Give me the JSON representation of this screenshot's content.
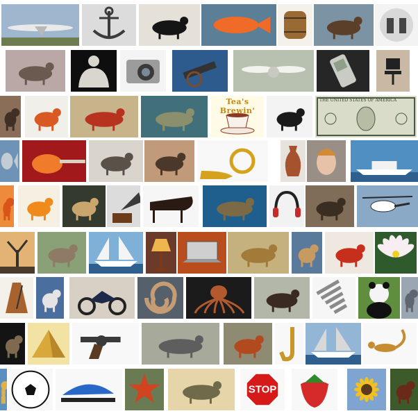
{
  "mosaic": {
    "background": "#ffffff",
    "rows": [
      {
        "tiles": [
          {
            "name": "airplane",
            "icon": "airplane-icon",
            "bg": "#9fb6cf",
            "fg": "#e9e9e9"
          },
          {
            "name": "anchor",
            "icon": "anchor-icon",
            "bg": "#dcdcdc",
            "fg": "#3b3b3b"
          },
          {
            "name": "ant",
            "icon": "ant-icon",
            "bg": "#e5e0d8",
            "fg": "#151515"
          },
          {
            "name": "goldfish",
            "icon": "fish-icon",
            "bg": "#5a7f96",
            "fg": "#f06a28"
          },
          {
            "name": "barrel",
            "icon": "barrel-icon",
            "bg": "#f4f1ea",
            "fg": "#9a6a35"
          },
          {
            "name": "beaver",
            "icon": "beaver-icon",
            "bg": "#7b93a3",
            "fg": "#5b3f28"
          },
          {
            "name": "binoculars",
            "icon": "binoculars-icon",
            "bg": "#f3f3f3",
            "fg": "#444444"
          }
        ]
      },
      {
        "tiles": [
          {
            "name": "brontosaurus",
            "icon": "dinosaur-icon",
            "bg": "#b9a8a6",
            "fg": "#6a5a50"
          },
          {
            "name": "buddha",
            "icon": "buddha-icon",
            "bg": "#0e0e0e",
            "fg": "#d8d6cf"
          },
          {
            "name": "camera",
            "icon": "camera-icon",
            "bg": "#f4f4f4",
            "fg": "#9c9c9c"
          },
          {
            "name": "cannon",
            "icon": "cannon-icon",
            "bg": "#2e5b8d",
            "fg": "#7a4b2c"
          },
          {
            "name": "ceiling-fan",
            "icon": "fan-icon",
            "bg": "#b8c0b0",
            "fg": "#f2f2ee"
          },
          {
            "name": "cellphone",
            "icon": "phone-icon",
            "bg": "#262626",
            "fg": "#c9ccc4"
          },
          {
            "name": "chair",
            "icon": "chair-icon",
            "bg": "#c9b8a4",
            "fg": "#222222"
          }
        ]
      },
      {
        "tiles": [
          {
            "name": "chimp",
            "icon": "chimp-icon",
            "bg": "#8a6e58",
            "fg": "#3f2f24"
          },
          {
            "name": "crab",
            "icon": "crab-icon",
            "bg": "#f1efe9",
            "fg": "#d85a22"
          },
          {
            "name": "crayfish",
            "icon": "crayfish-icon",
            "bg": "#c8b48a",
            "fg": "#b8331f"
          },
          {
            "name": "crocodile",
            "icon": "crocodile-icon",
            "bg": "#416f7a",
            "fg": "#8b8f6b"
          },
          {
            "name": "cup",
            "icon": "cup-icon",
            "bg": "#fffbe6",
            "fg": "#8a3a22",
            "caption": "Tea's Brewin'"
          },
          {
            "name": "dalmatian",
            "icon": "dog-icon",
            "bg": "#f3f3f3",
            "fg": "#1a1a1a"
          },
          {
            "name": "dollar-bill",
            "icon": "bill-icon",
            "bg": "#d8dcc9",
            "fg": "#4b5a44",
            "caption": "THE UNITED STATES OF AMERICA"
          }
        ]
      },
      {
        "tiles": [
          {
            "name": "dolphin",
            "icon": "dolphin-icon",
            "bg": "#6e93b7",
            "fg": "#c3ccd3"
          },
          {
            "name": "electric-guitar",
            "icon": "guitar-icon",
            "bg": "#a2191b",
            "fg": "#f07b2a"
          },
          {
            "name": "elephant",
            "icon": "elephant-icon",
            "bg": "#d9d4cc",
            "fg": "#5a5249"
          },
          {
            "name": "emu",
            "icon": "emu-icon",
            "bg": "#c09a79",
            "fg": "#4b382b"
          },
          {
            "name": "euphonium",
            "icon": "horn-icon",
            "bg": "#f8f8f8",
            "fg": "#d6a11d"
          },
          {
            "name": "ewer",
            "icon": "vase-icon",
            "bg": "#e7e2dc",
            "fg": "#a5532f"
          },
          {
            "name": "face",
            "icon": "face-icon",
            "bg": "#9a8f86",
            "fg": "#e7c2a8"
          },
          {
            "name": "ferry",
            "icon": "ship-icon",
            "bg": "#4f8fc1",
            "fg": "#f2f2f2"
          }
        ]
      },
      {
        "tiles": [
          {
            "name": "flamingo",
            "icon": "flamingo-icon",
            "bg": "#ee8b3b",
            "fg": "#d9531a"
          },
          {
            "name": "garfield",
            "icon": "garfield-icon",
            "bg": "#f6f0e2",
            "fg": "#f08a1b"
          },
          {
            "name": "gerenuk",
            "icon": "gerenuk-icon",
            "bg": "#343a2e",
            "fg": "#c8a66d"
          },
          {
            "name": "gramophone",
            "icon": "gramophone-icon",
            "bg": "#dcdcdc",
            "fg": "#3a3a3a"
          },
          {
            "name": "grand-piano",
            "icon": "piano-icon",
            "bg": "#f6f6f6",
            "fg": "#2a1a14"
          },
          {
            "name": "hawksbill",
            "icon": "turtle-icon",
            "bg": "#1f5f8e",
            "fg": "#7b6a45"
          },
          {
            "name": "headphone",
            "icon": "headphone-icon",
            "bg": "#f2f2f2",
            "fg": "#222222"
          },
          {
            "name": "hedgehog",
            "icon": "hedgehog-icon",
            "bg": "#7f6d58",
            "fg": "#3a2d22"
          },
          {
            "name": "helicopter",
            "icon": "helicopter-icon",
            "bg": "#89a9c6",
            "fg": "#2b2b2b"
          }
        ]
      },
      {
        "tiles": [
          {
            "name": "joshua-tree",
            "icon": "tree-icon",
            "bg": "#e3b275",
            "fg": "#34302a"
          },
          {
            "name": "kangaroo",
            "icon": "kangaroo-icon",
            "bg": "#8aa077",
            "fg": "#8d7b66"
          },
          {
            "name": "ketch",
            "icon": "sailboat-icon",
            "bg": "#7fb0d8",
            "fg": "#f4f4f4"
          },
          {
            "name": "lamp",
            "icon": "lamp-icon",
            "bg": "#6a3b2a",
            "fg": "#f0b64e"
          },
          {
            "name": "laptop",
            "icon": "laptop-icon",
            "bg": "#b94d1e",
            "fg": "#cfcfcf"
          },
          {
            "name": "leopards",
            "icon": "leopard-icon",
            "bg": "#c4b17d",
            "fg": "#a27a3a"
          },
          {
            "name": "llama",
            "icon": "llama-icon",
            "bg": "#5a7a9b",
            "fg": "#c79a62"
          },
          {
            "name": "lobster",
            "icon": "lobster-icon",
            "bg": "#efe8e0",
            "fg": "#c62f1c"
          },
          {
            "name": "lotus",
            "icon": "lotus-icon",
            "bg": "#2f5a2b",
            "fg": "#f6eef0"
          }
        ]
      },
      {
        "tiles": [
          {
            "name": "metronome",
            "icon": "metronome-icon",
            "bg": "#f4f0ea",
            "fg": "#a8622e"
          },
          {
            "name": "minaret",
            "icon": "minaret-icon",
            "bg": "#4a6e9e",
            "fg": "#e4e4e4"
          },
          {
            "name": "motorbike",
            "icon": "motorbike-icon",
            "bg": "#d8d0c4",
            "fg": "#1e2a4a"
          },
          {
            "name": "nautilus",
            "icon": "nautilus-icon",
            "bg": "#55606b",
            "fg": "#c69c74"
          },
          {
            "name": "octopus",
            "icon": "octopus-icon",
            "bg": "#1b1b1b",
            "fg": "#b25a2e"
          },
          {
            "name": "okapi",
            "icon": "okapi-icon",
            "bg": "#b3b7aa",
            "fg": "#3a2a22"
          },
          {
            "name": "pagoda",
            "icon": "pagoda-icon",
            "bg": "#f6f6f6",
            "fg": "#8a8a8a"
          },
          {
            "name": "panda",
            "icon": "panda-icon",
            "bg": "#5f8f3e",
            "fg": "#111111"
          },
          {
            "name": "pigeon",
            "icon": "pigeon-icon",
            "bg": "#9aa6b2",
            "fg": "#5f6670"
          }
        ]
      },
      {
        "tiles": [
          {
            "name": "platypus",
            "icon": "platypus-icon",
            "bg": "#141414",
            "fg": "#7f6a50"
          },
          {
            "name": "pyramid",
            "icon": "pyramid-icon",
            "bg": "#f2e3a4",
            "fg": "#d8a93a"
          },
          {
            "name": "revolver",
            "icon": "revolver-icon",
            "bg": "#f8f8f8",
            "fg": "#3a3a3a"
          },
          {
            "name": "rhino",
            "icon": "rhino-icon",
            "bg": "#a7a99a",
            "fg": "#5e5e5e"
          },
          {
            "name": "rooster",
            "icon": "rooster-icon",
            "bg": "#8f8a72",
            "fg": "#b24a1f"
          },
          {
            "name": "saxophone",
            "icon": "saxophone-icon",
            "bg": "#f8f8f8",
            "fg": "#c9962a"
          },
          {
            "name": "schooner",
            "icon": "schooner-icon",
            "bg": "#93b5d6",
            "fg": "#d8d8d8"
          },
          {
            "name": "scorpion",
            "icon": "scorpion-icon",
            "bg": "#f8f8f8",
            "fg": "#c58d2f"
          }
        ]
      },
      {
        "tiles": [
          {
            "name": "sea-horse",
            "icon": "seahorse-icon",
            "bg": "#5b8fc0",
            "fg": "#e0b04c"
          },
          {
            "name": "soccer-ball",
            "icon": "ball-icon",
            "bg": "#f8f8f8",
            "fg": "#111111"
          },
          {
            "name": "stapler",
            "icon": "stapler-icon",
            "bg": "#f8f8f8",
            "fg": "#2a68c7"
          },
          {
            "name": "starfish",
            "icon": "starfish-icon",
            "bg": "#6a7a52",
            "fg": "#d2431f"
          },
          {
            "name": "stegosaurus",
            "icon": "stegosaurus-icon",
            "bg": "#e6d5a8",
            "fg": "#6f6b4a"
          },
          {
            "name": "stop-sign",
            "icon": "stop-sign-icon",
            "bg": "#f8f8f8",
            "fg": "#d61a1a",
            "caption": "STOP"
          },
          {
            "name": "strawberry",
            "icon": "strawberry-icon",
            "bg": "#f8f8f8",
            "fg": "#d42a2a"
          },
          {
            "name": "sunflower",
            "icon": "sunflower-icon",
            "bg": "#7fa4d0",
            "fg": "#f0c020"
          },
          {
            "name": "tick",
            "icon": "tick-icon",
            "bg": "#3c5a2a",
            "fg": "#6a2a1a"
          }
        ]
      }
    ]
  }
}
